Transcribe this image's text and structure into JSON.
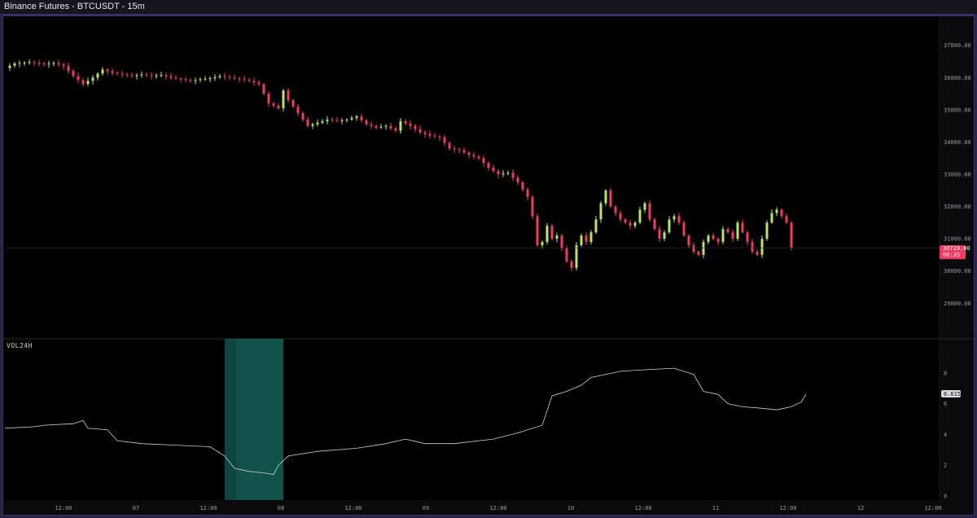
{
  "window": {
    "title": "Binance Futures - BTCUSDT - 15m"
  },
  "colors": {
    "up": "#b9e36a",
    "down": "#f23b62",
    "volume_line": "#cfcfd6",
    "highlight": "#1a7d72",
    "background": "#000000"
  },
  "chart_data": [
    {
      "type": "candlestick",
      "name": "BTCUSDT",
      "y_ticks": [
        "37000.00",
        "36000.00",
        "35000.00",
        "34000.00",
        "33000.00",
        "32000.00",
        "31000.00",
        "30000.00",
        "29000.00"
      ],
      "ylim": [
        28300,
        37700
      ],
      "last_price": "30720.00",
      "countdown": "08:35",
      "x_ticks": [
        "12:00",
        "07",
        "12:00",
        "08",
        "12:00",
        "09",
        "12:00",
        "10",
        "12:00",
        "11",
        "12:00",
        "12",
        "12:00"
      ],
      "close_path": [
        [
          0,
          36300
        ],
        [
          2,
          36440
        ],
        [
          5,
          36480
        ],
        [
          8,
          36420
        ],
        [
          10,
          36450
        ],
        [
          12,
          36360
        ],
        [
          14,
          36050
        ],
        [
          16,
          35800
        ],
        [
          18,
          36000
        ],
        [
          20,
          36250
        ],
        [
          22,
          36150
        ],
        [
          24,
          36100
        ],
        [
          26,
          36050
        ],
        [
          28,
          36100
        ],
        [
          30,
          36050
        ],
        [
          32,
          36080
        ],
        [
          34,
          36000
        ],
        [
          36,
          35950
        ],
        [
          38,
          35900
        ],
        [
          40,
          35950
        ],
        [
          42,
          35980
        ],
        [
          44,
          36050
        ],
        [
          46,
          36000
        ],
        [
          48,
          35950
        ],
        [
          50,
          35900
        ],
        [
          52,
          35800
        ],
        [
          54,
          35200
        ],
        [
          56,
          35050
        ],
        [
          57,
          35600
        ],
        [
          58,
          35300
        ],
        [
          60,
          34900
        ],
        [
          62,
          34500
        ],
        [
          64,
          34600
        ],
        [
          66,
          34700
        ],
        [
          68,
          34650
        ],
        [
          70,
          34700
        ],
        [
          72,
          34800
        ],
        [
          74,
          34550
        ],
        [
          76,
          34450
        ],
        [
          78,
          34500
        ],
        [
          80,
          34350
        ],
        [
          81,
          34650
        ],
        [
          83,
          34500
        ],
        [
          85,
          34300
        ],
        [
          87,
          34200
        ],
        [
          89,
          34150
        ],
        [
          91,
          33800
        ],
        [
          93,
          33750
        ],
        [
          95,
          33600
        ],
        [
          97,
          33500
        ],
        [
          99,
          33200
        ],
        [
          101,
          33000
        ],
        [
          103,
          33050
        ],
        [
          105,
          32750
        ],
        [
          107,
          32300
        ],
        [
          108,
          31700
        ],
        [
          109,
          30800
        ],
        [
          110,
          30900
        ],
        [
          111,
          31400
        ],
        [
          112,
          31000
        ],
        [
          113,
          31100
        ],
        [
          114,
          30700
        ],
        [
          115,
          30300
        ],
        [
          116,
          30100
        ],
        [
          117,
          30800
        ],
        [
          118,
          31100
        ],
        [
          119,
          30900
        ],
        [
          120,
          31200
        ],
        [
          121,
          31600
        ],
        [
          122,
          32100
        ],
        [
          123,
          32500
        ],
        [
          124,
          32000
        ],
        [
          125,
          31800
        ],
        [
          126,
          31600
        ],
        [
          127,
          31500
        ],
        [
          128,
          31400
        ],
        [
          129,
          31500
        ],
        [
          130,
          31900
        ],
        [
          131,
          32100
        ],
        [
          132,
          31600
        ],
        [
          133,
          31300
        ],
        [
          134,
          31000
        ],
        [
          135,
          31200
        ],
        [
          136,
          31600
        ],
        [
          137,
          31700
        ],
        [
          138,
          31500
        ],
        [
          139,
          31100
        ],
        [
          140,
          30800
        ],
        [
          141,
          30600
        ],
        [
          142,
          30500
        ],
        [
          143,
          30900
        ],
        [
          144,
          31100
        ],
        [
          145,
          31000
        ],
        [
          146,
          30900
        ],
        [
          147,
          31300
        ],
        [
          148,
          31200
        ],
        [
          149,
          31000
        ],
        [
          150,
          31500
        ],
        [
          151,
          31200
        ],
        [
          152,
          30900
        ],
        [
          153,
          30600
        ],
        [
          154,
          30500
        ],
        [
          155,
          31000
        ],
        [
          156,
          31500
        ],
        [
          157,
          31800
        ],
        [
          158,
          31900
        ],
        [
          159,
          31700
        ],
        [
          160,
          31500
        ],
        [
          161,
          30720
        ]
      ]
    },
    {
      "type": "line",
      "name": "VOL24H",
      "y_ticks": [
        "8",
        "6",
        "4",
        "2",
        "0"
      ],
      "ylim": [
        0,
        10
      ],
      "last_value": "6.615",
      "highlight_x": [
        45,
        57
      ],
      "values": [
        [
          0,
          4.4
        ],
        [
          6,
          4.5
        ],
        [
          8,
          4.6
        ],
        [
          14,
          4.7
        ],
        [
          16,
          4.9
        ],
        [
          17,
          4.4
        ],
        [
          21,
          4.3
        ],
        [
          23,
          3.6
        ],
        [
          28,
          3.4
        ],
        [
          35,
          3.3
        ],
        [
          42,
          3.2
        ],
        [
          45,
          2.6
        ],
        [
          47,
          1.8
        ],
        [
          50,
          1.6
        ],
        [
          53,
          1.5
        ],
        [
          55,
          1.4
        ],
        [
          56,
          2.0
        ],
        [
          58,
          2.6
        ],
        [
          64,
          2.9
        ],
        [
          72,
          3.1
        ],
        [
          78,
          3.4
        ],
        [
          82,
          3.7
        ],
        [
          86,
          3.4
        ],
        [
          92,
          3.4
        ],
        [
          100,
          3.7
        ],
        [
          105,
          4.1
        ],
        [
          110,
          4.6
        ],
        [
          112,
          6.5
        ],
        [
          115,
          6.8
        ],
        [
          118,
          7.2
        ],
        [
          120,
          7.7
        ],
        [
          126,
          8.1
        ],
        [
          131,
          8.2
        ],
        [
          137,
          8.3
        ],
        [
          141,
          7.9
        ],
        [
          143,
          6.8
        ],
        [
          146,
          6.6
        ],
        [
          148,
          6.0
        ],
        [
          151,
          5.8
        ],
        [
          155,
          5.7
        ],
        [
          158,
          5.6
        ],
        [
          161,
          5.8
        ],
        [
          163,
          6.1
        ],
        [
          164,
          6.615
        ]
      ]
    }
  ]
}
